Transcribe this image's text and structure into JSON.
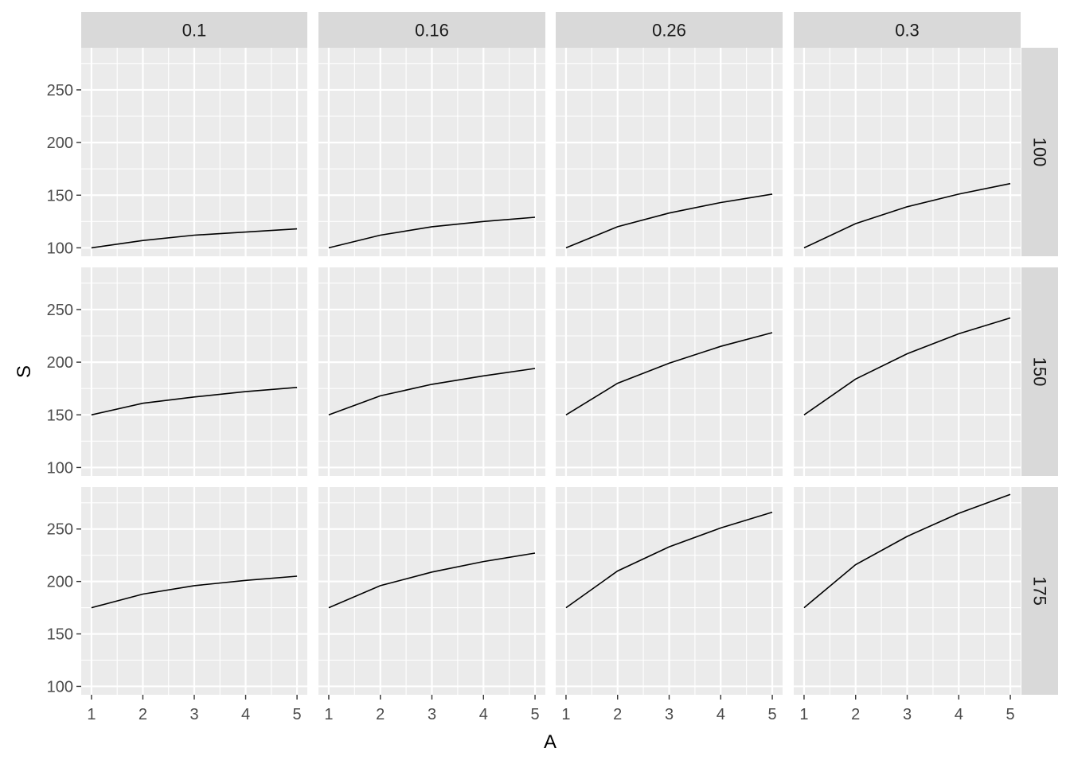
{
  "chart_data": {
    "type": "line",
    "layout": "facet_grid",
    "xlabel": "A",
    "ylabel": "S",
    "x": [
      1,
      2,
      3,
      4,
      5
    ],
    "x_ticks": [
      "1",
      "2",
      "3",
      "4",
      "5"
    ],
    "ylim": [
      92,
      290
    ],
    "y_ticks": [
      "100",
      "150",
      "200",
      "250"
    ],
    "col_facets": [
      "0.1",
      "0.16",
      "0.26",
      "0.3"
    ],
    "row_facets": [
      "100",
      "150",
      "175"
    ],
    "grid": true,
    "line_color": "#000000",
    "panel_background": "#ebebeb",
    "strip_background": "#d9d9d9",
    "panels": [
      {
        "row": "100",
        "col": "0.1",
        "values": [
          100,
          107,
          112,
          115,
          118
        ]
      },
      {
        "row": "100",
        "col": "0.16",
        "values": [
          100,
          112,
          120,
          125,
          129
        ]
      },
      {
        "row": "100",
        "col": "0.26",
        "values": [
          100,
          120,
          133,
          143,
          151
        ]
      },
      {
        "row": "100",
        "col": "0.3",
        "values": [
          100,
          123,
          139,
          151,
          161
        ]
      },
      {
        "row": "150",
        "col": "0.1",
        "values": [
          150,
          161,
          167,
          172,
          176
        ]
      },
      {
        "row": "150",
        "col": "0.16",
        "values": [
          150,
          168,
          179,
          187,
          194
        ]
      },
      {
        "row": "150",
        "col": "0.26",
        "values": [
          150,
          180,
          199,
          215,
          228
        ]
      },
      {
        "row": "150",
        "col": "0.3",
        "values": [
          150,
          184,
          208,
          227,
          242
        ]
      },
      {
        "row": "175",
        "col": "0.1",
        "values": [
          175,
          188,
          196,
          201,
          205
        ]
      },
      {
        "row": "175",
        "col": "0.16",
        "values": [
          175,
          196,
          209,
          219,
          227
        ]
      },
      {
        "row": "175",
        "col": "0.26",
        "values": [
          175,
          210,
          233,
          251,
          266
        ]
      },
      {
        "row": "175",
        "col": "0.3",
        "values": [
          175,
          216,
          243,
          265,
          283
        ]
      }
    ]
  }
}
